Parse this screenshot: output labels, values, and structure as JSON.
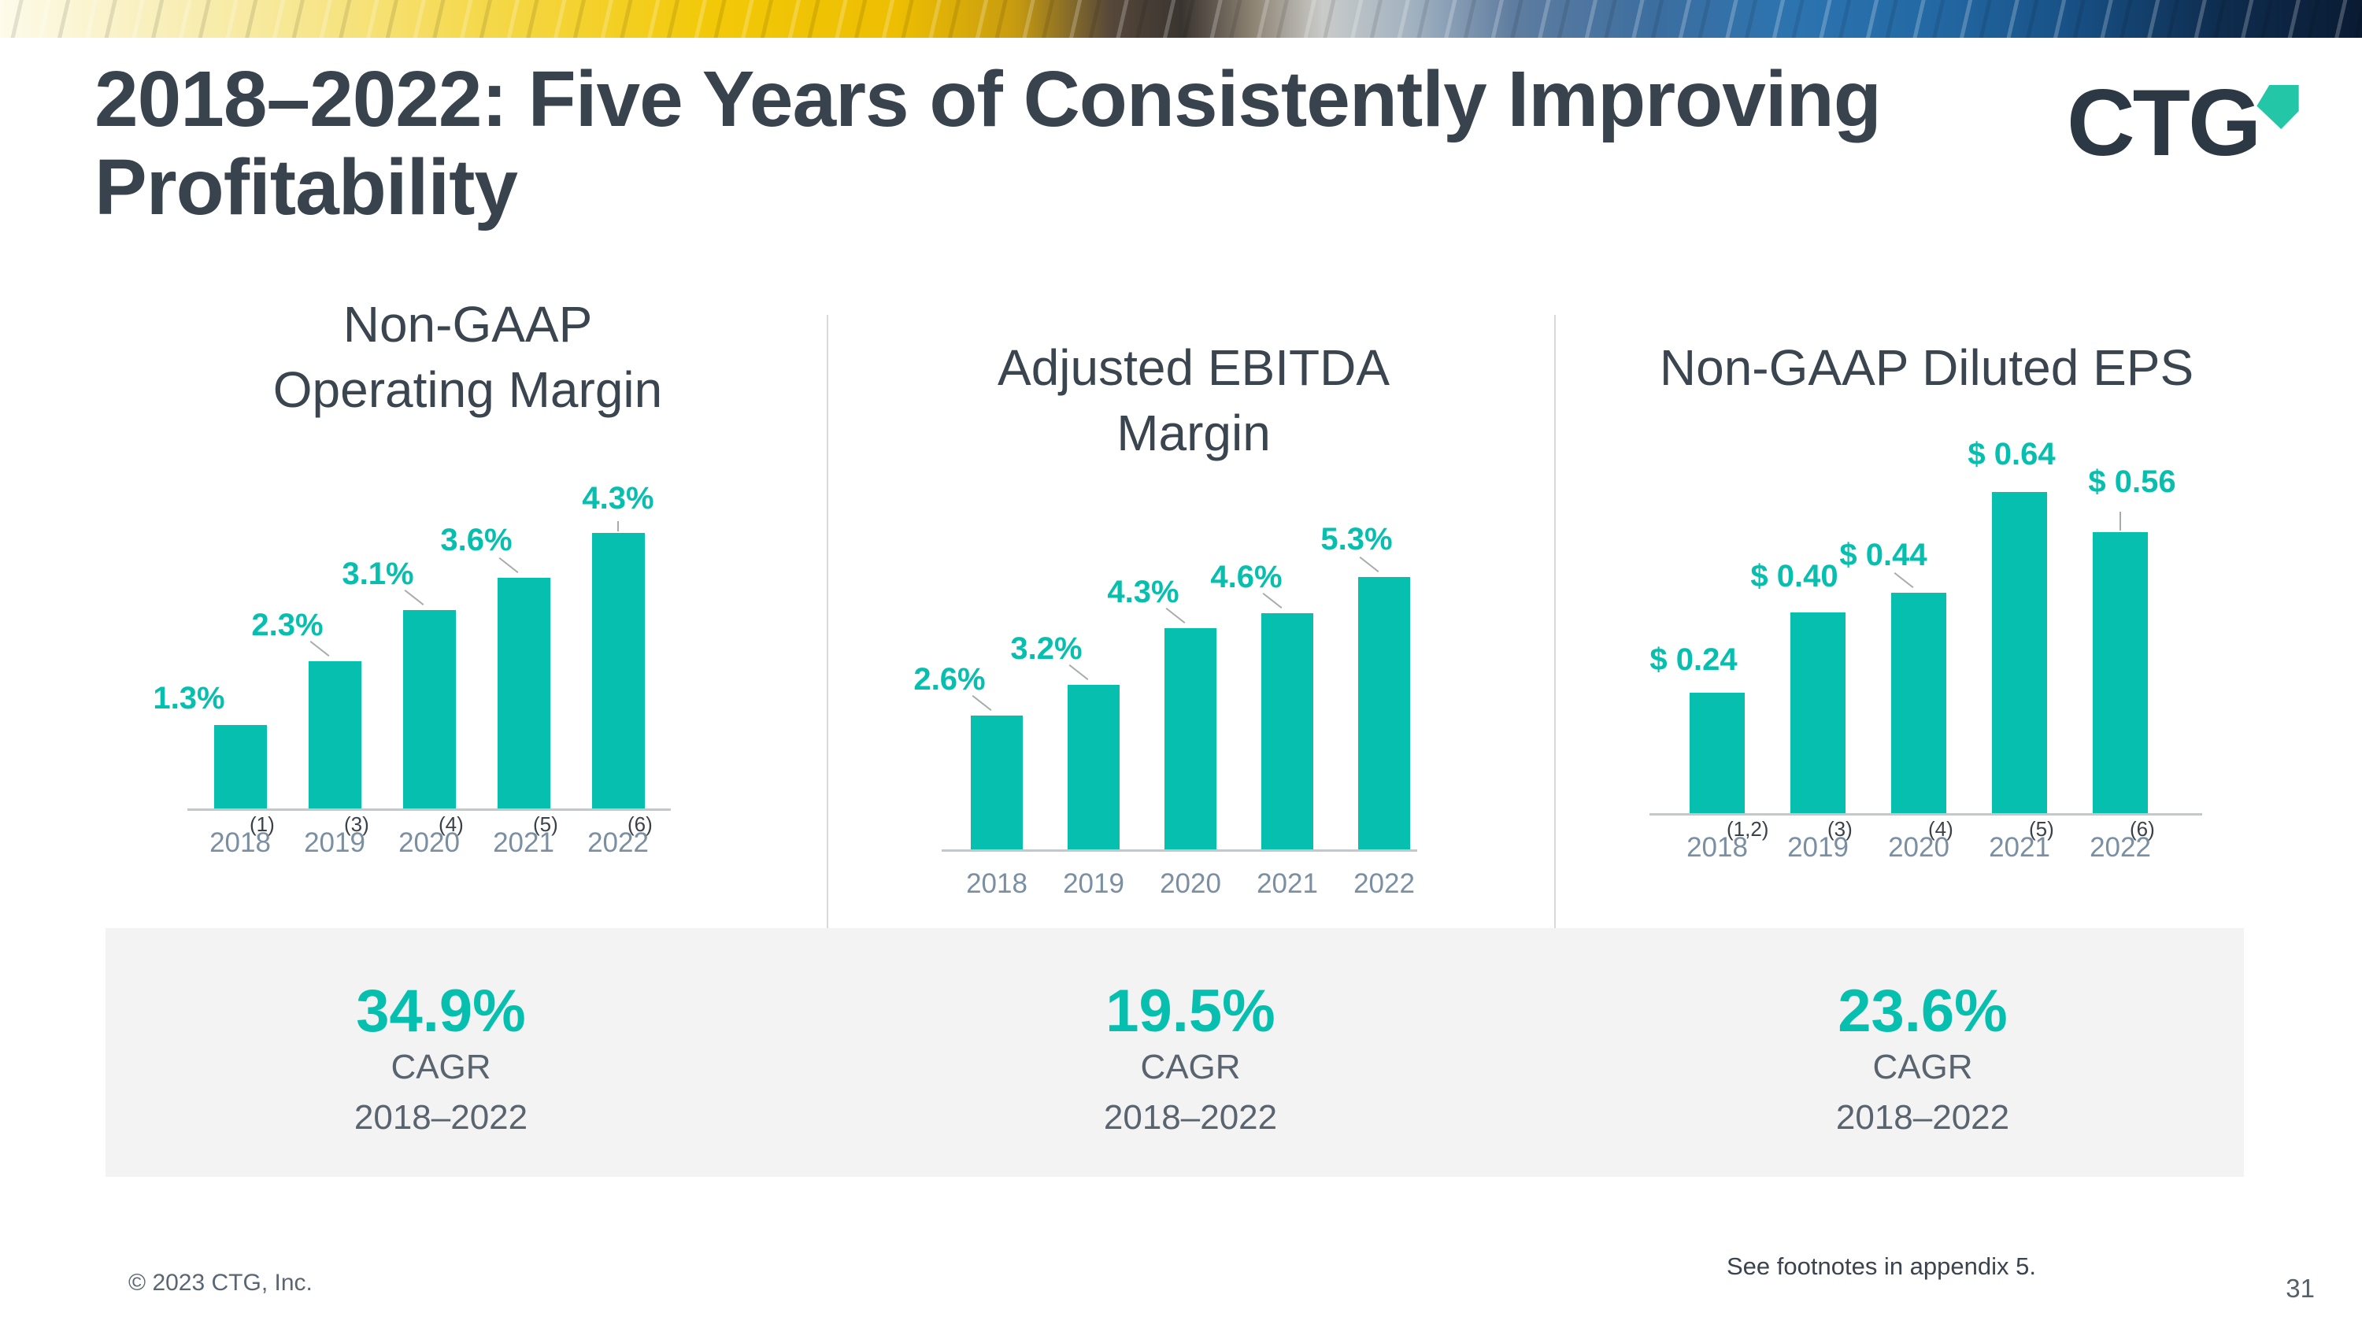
{
  "header": {
    "title_line1": "2018–2022: Five Years of Consistently Improving",
    "title_line2": "Profitability",
    "logo_text": "CTG"
  },
  "chart_data": [
    {
      "type": "bar",
      "title": "Non-GAAP\nOperating Margin",
      "categories": [
        "2018",
        "2019",
        "2020",
        "2021",
        "2022"
      ],
      "values": [
        1.3,
        2.3,
        3.1,
        3.6,
        4.3
      ],
      "value_labels": [
        "1.3%",
        "2.3%",
        "3.1%",
        "3.6%",
        "4.3%"
      ],
      "footnote_markers": [
        "(1)",
        "(3)",
        "(4)",
        "(5)",
        "(6)"
      ],
      "unit": "%",
      "ylim": [
        0,
        4.5
      ],
      "grid": "off",
      "legend": "none"
    },
    {
      "type": "bar",
      "title": "Adjusted EBITDA\nMargin",
      "categories": [
        "2018",
        "2019",
        "2020",
        "2021",
        "2022"
      ],
      "values": [
        2.6,
        3.2,
        4.3,
        4.6,
        5.3
      ],
      "value_labels": [
        "2.6%",
        "3.2%",
        "4.3%",
        "4.6%",
        "5.3%"
      ],
      "footnote_markers": [],
      "unit": "%",
      "ylim": [
        0,
        5.6
      ],
      "grid": "off",
      "legend": "none"
    },
    {
      "type": "bar",
      "title": "Non-GAAP Diluted EPS",
      "categories": [
        "2018",
        "2019",
        "2020",
        "2021",
        "2022"
      ],
      "values": [
        0.24,
        0.4,
        0.44,
        0.64,
        0.56
      ],
      "value_labels": [
        "$ 0.24",
        "$ 0.40",
        "$ 0.44",
        "$ 0.64",
        "$ 0.56"
      ],
      "footnote_markers": [
        "(1,2)",
        "(3)",
        "(4)",
        "(5)",
        "(6)"
      ],
      "unit": "$",
      "ylim": [
        0,
        0.67
      ],
      "grid": "off",
      "legend": "none"
    }
  ],
  "cagr": {
    "values": [
      "34.9%",
      "19.5%",
      "23.6%"
    ],
    "label": "CAGR",
    "range": "2018–2022"
  },
  "footer": {
    "copyright": "© 2023 CTG, Inc.",
    "note": "See footnotes in appendix 5.",
    "page": "31"
  },
  "colors": {
    "accent_teal": "#06BFAF",
    "logo_arrow_teal": "#23C6A6",
    "title_slate": "#38434D",
    "year_gray_blue": "#7B8FA3",
    "band_gray": "#F3F3F4"
  }
}
